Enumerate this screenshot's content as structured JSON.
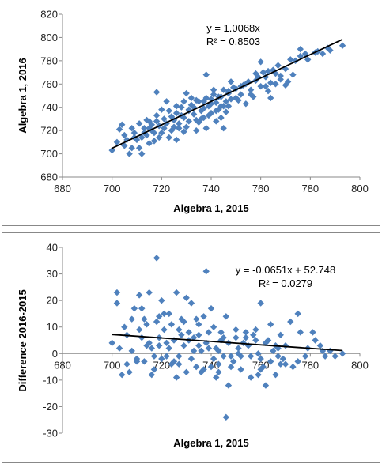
{
  "chart_data": [
    {
      "type": "scatter",
      "xlabel": "Algebra 1, 2015",
      "ylabel": "Algebra 1, 2016",
      "xlim": [
        680,
        800
      ],
      "ylim": [
        680,
        820
      ],
      "xticks": [
        "680",
        "700",
        "720",
        "740",
        "760",
        "780",
        "800"
      ],
      "yticks": [
        "680",
        "700",
        "720",
        "740",
        "760",
        "780",
        "800",
        "820"
      ],
      "trendline": {
        "slope": 1.0068,
        "intercept": 0,
        "x_range": [
          700,
          793
        ]
      },
      "annotation": {
        "equation": "y = 1.0068x",
        "r2": "R² = 0.8503"
      },
      "marker_color": "#4F81BD",
      "grid": false,
      "points": [
        [
          700,
          703
        ],
        [
          702,
          710
        ],
        [
          703,
          721
        ],
        [
          704,
          725
        ],
        [
          705,
          707
        ],
        [
          706,
          712
        ],
        [
          707,
          700
        ],
        [
          708,
          705
        ],
        [
          709,
          718
        ],
        [
          710,
          712
        ],
        [
          711,
          726
        ],
        [
          712,
          714
        ],
        [
          713,
          722
        ],
        [
          714,
          716
        ],
        [
          715,
          728
        ],
        [
          716,
          720
        ],
        [
          717,
          711
        ],
        [
          718,
          733
        ],
        [
          719,
          724
        ],
        [
          720,
          718
        ],
        [
          721,
          730
        ],
        [
          722,
          726
        ],
        [
          723,
          737
        ],
        [
          724,
          720
        ],
        [
          725,
          729
        ],
        [
          726,
          735
        ],
        [
          727,
          726
        ],
        [
          728,
          740
        ],
        [
          729,
          731
        ],
        [
          730,
          723
        ],
        [
          731,
          738
        ],
        [
          732,
          742
        ],
        [
          733,
          734
        ],
        [
          734,
          729
        ],
        [
          735,
          745
        ],
        [
          736,
          737
        ],
        [
          737,
          731
        ],
        [
          738,
          748
        ],
        [
          739,
          741
        ],
        [
          740,
          735
        ],
        [
          741,
          751
        ],
        [
          742,
          744
        ],
        [
          743,
          738
        ],
        [
          744,
          749
        ],
        [
          745,
          755
        ],
        [
          746,
          745
        ],
        [
          747,
          752
        ],
        [
          748,
          747
        ],
        [
          750,
          756
        ],
        [
          752,
          751
        ],
        [
          754,
          760
        ],
        [
          756,
          755
        ],
        [
          758,
          763
        ],
        [
          760,
          758
        ],
        [
          762,
          766
        ],
        [
          764,
          761
        ],
        [
          766,
          769
        ],
        [
          768,
          764
        ],
        [
          770,
          773
        ],
        [
          773,
          768
        ],
        [
          776,
          784
        ],
        [
          779,
          781
        ],
        [
          782,
          787
        ],
        [
          785,
          786
        ],
        [
          788,
          789
        ],
        [
          793,
          793
        ],
        [
          712,
          700
        ],
        [
          715,
          709
        ],
        [
          718,
          753
        ],
        [
          722,
          745
        ],
        [
          726,
          712
        ],
        [
          730,
          752
        ],
        [
          734,
          720
        ],
        [
          738,
          768
        ],
        [
          742,
          728
        ],
        [
          745,
          722
        ],
        [
          748,
          762
        ],
        [
          754,
          743
        ],
        [
          760,
          779
        ],
        [
          764,
          748
        ],
        [
          770,
          759
        ],
        [
          776,
          790
        ],
        [
          705,
          716
        ],
        [
          708,
          722
        ],
        [
          711,
          705
        ],
        [
          714,
          729
        ],
        [
          717,
          718
        ],
        [
          720,
          738
        ],
        [
          723,
          714
        ],
        [
          726,
          741
        ],
        [
          729,
          719
        ],
        [
          732,
          748
        ],
        [
          735,
          727
        ],
        [
          738,
          722
        ],
        [
          741,
          755
        ],
        [
          744,
          731
        ],
        [
          747,
          741
        ],
        [
          750,
          748
        ],
        [
          753,
          759
        ],
        [
          756,
          751
        ],
        [
          759,
          766
        ],
        [
          762,
          758
        ],
        [
          765,
          772
        ],
        [
          768,
          767
        ],
        [
          771,
          762
        ],
        [
          774,
          780
        ],
        [
          713,
          718
        ],
        [
          716,
          725
        ],
        [
          719,
          714
        ],
        [
          721,
          722
        ],
        [
          724,
          732
        ],
        [
          727,
          722
        ],
        [
          729,
          745
        ],
        [
          731,
          728
        ],
        [
          733,
          740
        ],
        [
          736,
          730
        ],
        [
          737,
          745
        ],
        [
          739,
          733
        ],
        [
          740,
          743
        ],
        [
          742,
          737
        ],
        [
          743,
          749
        ],
        [
          745,
          741
        ],
        [
          746,
          736
        ],
        [
          749,
          757
        ],
        [
          751,
          746
        ],
        [
          755,
          762
        ],
        [
          757,
          749
        ],
        [
          761,
          770
        ],
        [
          763,
          754
        ],
        [
          766,
          760
        ],
        [
          709,
          714
        ],
        [
          715,
          722
        ],
        [
          718,
          728
        ],
        [
          725,
          723
        ],
        [
          728,
          733
        ],
        [
          731,
          737
        ],
        [
          734,
          746
        ],
        [
          737,
          739
        ],
        [
          740,
          747
        ],
        [
          744,
          741
        ],
        [
          747,
          754
        ],
        [
          752,
          758
        ],
        [
          758,
          769
        ],
        [
          763,
          771
        ],
        [
          767,
          776
        ],
        [
          772,
          781
        ],
        [
          778,
          786
        ],
        [
          783,
          788
        ],
        [
          787,
          791
        ]
      ]
    },
    {
      "type": "scatter",
      "xlabel": "Algebra 1, 2015",
      "ylabel": "Difference 2016-2015",
      "xlim": [
        680,
        800
      ],
      "ylim": [
        -30,
        40
      ],
      "xticks": [
        "680",
        "700",
        "720",
        "740",
        "760",
        "780",
        "800"
      ],
      "yticks": [
        "-30",
        "-20",
        "-10",
        "0",
        "10",
        "20",
        "30",
        "40"
      ],
      "trendline": {
        "slope": -0.0651,
        "intercept": 52.748,
        "x_range": [
          700,
          793
        ]
      },
      "annotation": {
        "equation": "y = -0.0651x + 52.748",
        "r2": "R² = 0.0279"
      },
      "marker_color": "#4F81BD",
      "grid": false,
      "points": [
        [
          700,
          4
        ],
        [
          702,
          23
        ],
        [
          702,
          19
        ],
        [
          703,
          2
        ],
        [
          705,
          10
        ],
        [
          706,
          -4
        ],
        [
          707,
          -7
        ],
        [
          708,
          1
        ],
        [
          709,
          17
        ],
        [
          710,
          -2
        ],
        [
          711,
          22
        ],
        [
          712,
          6
        ],
        [
          713,
          -3
        ],
        [
          714,
          11
        ],
        [
          715,
          23
        ],
        [
          716,
          2
        ],
        [
          717,
          -6
        ],
        [
          718,
          36
        ],
        [
          719,
          14
        ],
        [
          720,
          -2
        ],
        [
          721,
          9
        ],
        [
          722,
          4
        ],
        [
          723,
          15
        ],
        [
          724,
          -4
        ],
        [
          725,
          5
        ],
        [
          726,
          23
        ],
        [
          727,
          -1
        ],
        [
          728,
          13
        ],
        [
          729,
          3
        ],
        [
          730,
          -7
        ],
        [
          731,
          8
        ],
        [
          732,
          19
        ],
        [
          733,
          1
        ],
        [
          734,
          -5
        ],
        [
          735,
          11
        ],
        [
          736,
          1
        ],
        [
          737,
          -6
        ],
        [
          738,
          31
        ],
        [
          739,
          2
        ],
        [
          740,
          -5
        ],
        [
          741,
          10
        ],
        [
          742,
          2
        ],
        [
          743,
          -4
        ],
        [
          744,
          5
        ],
        [
          745,
          -1
        ],
        [
          746,
          -24
        ],
        [
          747,
          -12
        ],
        [
          748,
          -1
        ],
        [
          750,
          6
        ],
        [
          752,
          -1
        ],
        [
          754,
          6
        ],
        [
          756,
          -1
        ],
        [
          758,
          5
        ],
        [
          760,
          -2
        ],
        [
          762,
          4
        ],
        [
          764,
          -3
        ],
        [
          766,
          3
        ],
        [
          768,
          -4
        ],
        [
          770,
          3
        ],
        [
          773,
          -5
        ],
        [
          776,
          8
        ],
        [
          779,
          2
        ],
        [
          782,
          5
        ],
        [
          785,
          1
        ],
        [
          788,
          1
        ],
        [
          793,
          0
        ],
        [
          704,
          -8
        ],
        [
          706,
          7
        ],
        [
          708,
          13
        ],
        [
          710,
          -3
        ],
        [
          712,
          17
        ],
        [
          714,
          3
        ],
        [
          716,
          -8
        ],
        [
          718,
          12
        ],
        [
          720,
          20
        ],
        [
          722,
          -1
        ],
        [
          724,
          11
        ],
        [
          726,
          -9
        ],
        [
          728,
          7
        ],
        [
          730,
          21
        ],
        [
          732,
          -2
        ],
        [
          734,
          13
        ],
        [
          736,
          -7
        ],
        [
          738,
          4
        ],
        [
          740,
          17
        ],
        [
          742,
          -9
        ],
        [
          744,
          8
        ],
        [
          746,
          14
        ],
        [
          748,
          -5
        ],
        [
          750,
          9
        ],
        [
          752,
          -6
        ],
        [
          754,
          8
        ],
        [
          756,
          -9
        ],
        [
          758,
          9
        ],
        [
          760,
          -6
        ],
        [
          760,
          19
        ],
        [
          762,
          -12
        ],
        [
          764,
          11
        ],
        [
          766,
          -8
        ],
        [
          768,
          7
        ],
        [
          770,
          -4
        ],
        [
          772,
          12
        ],
        [
          775,
          15
        ],
        [
          778,
          -1
        ],
        [
          781,
          8
        ],
        [
          784,
          3
        ],
        [
          786,
          -1
        ],
        [
          715,
          4
        ],
        [
          719,
          6
        ],
        [
          723,
          2
        ],
        [
          727,
          9
        ],
        [
          731,
          5
        ],
        [
          735,
          3
        ],
        [
          739,
          8
        ],
        [
          743,
          1
        ],
        [
          747,
          4
        ],
        [
          751,
          2
        ],
        [
          755,
          3
        ],
        [
          759,
          0
        ],
        [
          763,
          5
        ],
        [
          767,
          2
        ],
        [
          713,
          13
        ],
        [
          717,
          -1
        ],
        [
          721,
          15
        ],
        [
          725,
          -3
        ],
        [
          729,
          12
        ],
        [
          733,
          6
        ],
        [
          737,
          14
        ],
        [
          741,
          -2
        ],
        [
          745,
          6
        ],
        [
          749,
          -3
        ],
        [
          753,
          4
        ],
        [
          757,
          7
        ],
        [
          761,
          -5
        ],
        [
          765,
          1
        ],
        [
          769,
          -2
        ],
        [
          711,
          9
        ],
        [
          719,
          3
        ],
        [
          727,
          -4
        ],
        [
          735,
          7
        ],
        [
          743,
          -7
        ],
        [
          751,
          0
        ],
        [
          759,
          -8
        ],
        [
          767,
          -1
        ],
        [
          775,
          -3
        ],
        [
          790,
          -1
        ]
      ]
    }
  ]
}
